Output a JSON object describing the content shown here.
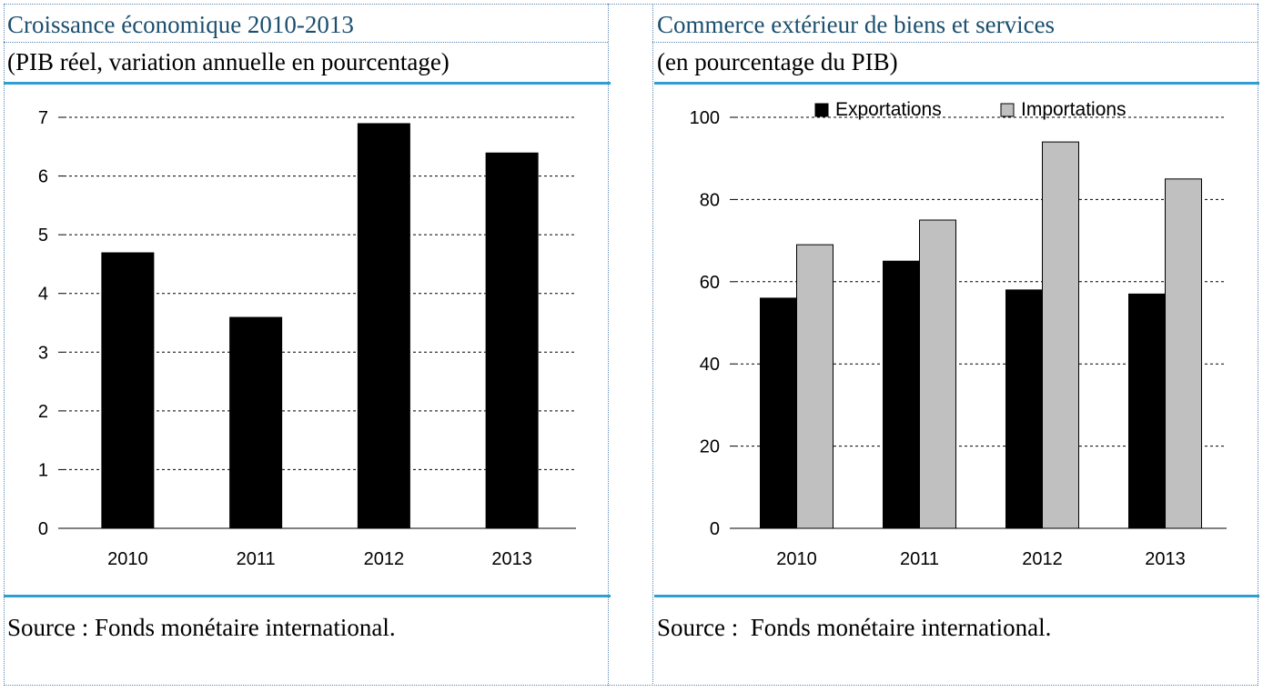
{
  "left_panel": {
    "title": "Croissance économique 2010-2013",
    "subtitle": "(PIB réel, variation annuelle en pourcentage)",
    "source": "Source : Fonds monétaire international."
  },
  "right_panel": {
    "title": "Commerce extérieur de biens et services",
    "subtitle": "(en pourcentage du PIB)",
    "source": "Source :  Fonds monétaire international."
  },
  "colors": {
    "title_text": "#1b4f6e",
    "rule": "#2f9fd2",
    "border": "#5b87b5",
    "exports_bar": "#000000",
    "imports_bar": "#c0c0c0"
  },
  "chart_data": [
    {
      "type": "bar",
      "title": "Croissance économique 2010-2013",
      "subtitle": "(PIB réel, variation annuelle en pourcentage)",
      "categories": [
        "2010",
        "2011",
        "2012",
        "2013"
      ],
      "series": [
        {
          "values": [
            4.7,
            3.6,
            6.9,
            6.4
          ]
        }
      ],
      "ylim": [
        0,
        7
      ],
      "yticks": [
        0,
        1,
        2,
        3,
        4,
        5,
        6,
        7
      ],
      "grid": true,
      "legend": "none"
    },
    {
      "type": "bar",
      "title": "Commerce extérieur de biens et services",
      "subtitle": "(en pourcentage du PIB)",
      "categories": [
        "2010",
        "2011",
        "2012",
        "2013"
      ],
      "series": [
        {
          "name": "Exportations",
          "values": [
            56,
            65,
            58,
            57
          ]
        },
        {
          "name": "Importations",
          "values": [
            69,
            75,
            94,
            85
          ]
        }
      ],
      "ylim": [
        0,
        100
      ],
      "yticks": [
        0,
        20,
        40,
        60,
        80,
        100
      ],
      "grid": true,
      "legend": "top"
    }
  ]
}
